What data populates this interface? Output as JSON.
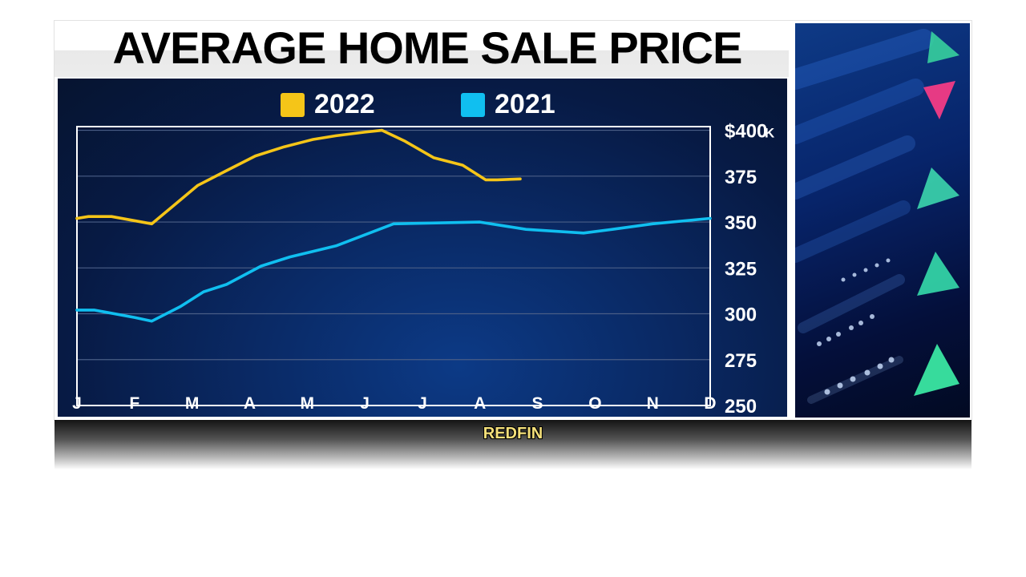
{
  "header": {
    "title": "AVERAGE HOME SALE PRICE"
  },
  "source": {
    "label": "REDFIN"
  },
  "colors": {
    "series_2022": "#f5c518",
    "series_2021": "#10bff0",
    "panel_bg": "#071a44"
  },
  "chart_data": {
    "type": "line",
    "title": "AVERAGE HOME SALE PRICE",
    "xlabel": "",
    "ylabel": "",
    "y_unit_label": "K",
    "categories": [
      "J",
      "F",
      "M",
      "A",
      "M",
      "J",
      "J",
      "A",
      "S",
      "O",
      "N",
      "D"
    ],
    "x_range": [
      0,
      11
    ],
    "ylim": [
      250,
      402
    ],
    "y_ticks": [
      250,
      275,
      300,
      325,
      350,
      375,
      400
    ],
    "y_tick_labels": [
      "250",
      "275",
      "300",
      "325",
      "350",
      "375",
      "$400"
    ],
    "grid": true,
    "legend_position": "top-center",
    "series": [
      {
        "name": "2022",
        "color": "#f5c518",
        "x": [
          0,
          0.2,
          0.6,
          1.3,
          2.1,
          2.6,
          3.1,
          3.6,
          4.1,
          4.5,
          5.0,
          5.3,
          5.7,
          6.2,
          6.7,
          7.1,
          7.3,
          7.7
        ],
        "y": [
          352,
          353,
          353,
          349,
          370,
          378,
          386,
          391,
          395,
          397,
          399,
          400,
          394,
          385,
          381,
          373,
          373,
          373.5
        ]
      },
      {
        "name": "2021",
        "color": "#10bff0",
        "x": [
          0,
          0.3,
          1.0,
          1.3,
          1.8,
          2.2,
          2.6,
          3.2,
          3.7,
          4.5,
          5.0,
          5.5,
          7.0,
          7.8,
          8.8,
          9.3,
          10.0,
          11.0
        ],
        "y": [
          302,
          302,
          298,
          296,
          304,
          312,
          316,
          326,
          331,
          337,
          343,
          349,
          350,
          346,
          344,
          346,
          349,
          352
        ]
      }
    ]
  }
}
